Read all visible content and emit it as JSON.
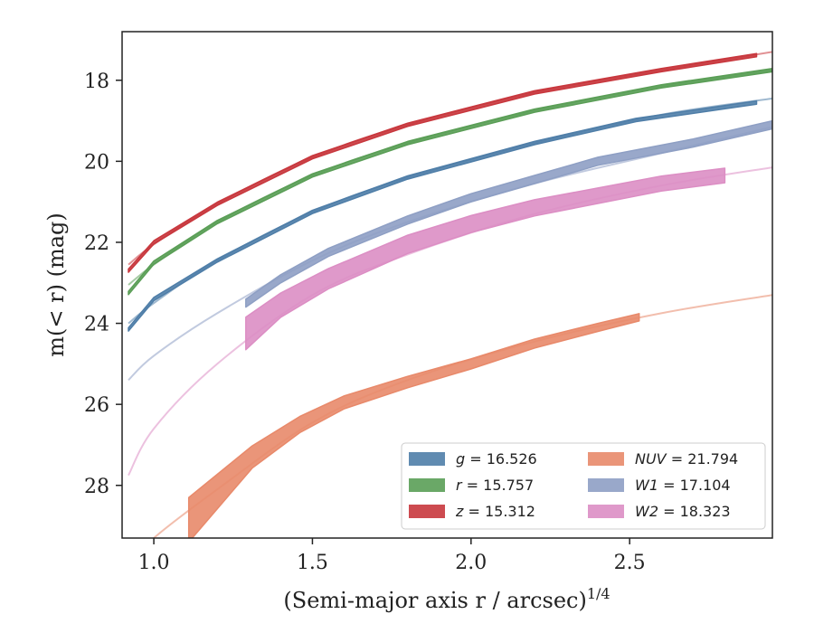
{
  "chart_data": {
    "type": "line",
    "xlabel": "(Semi-major axis r / arcsec)",
    "xlabel_exponent": "1/4",
    "ylabel": "m(< r) (mag)",
    "xlim": [
      0.9,
      2.95
    ],
    "ylim": [
      29.3,
      16.8
    ],
    "y_inverted": true,
    "x_ticks": [
      "1.0",
      "1.5",
      "2.0",
      "2.5"
    ],
    "y_ticks": [
      "18",
      "20",
      "22",
      "24",
      "26",
      "28"
    ],
    "grid": false,
    "legend_position": "lower-right",
    "series": [
      {
        "name": "g = 16.526",
        "color": "#4f7ea8",
        "model_points": [
          [
            0.92,
            24.0
          ],
          [
            1.0,
            23.5
          ],
          [
            1.2,
            22.45
          ],
          [
            1.5,
            21.25
          ],
          [
            1.8,
            20.4
          ],
          [
            2.2,
            19.55
          ],
          [
            2.6,
            18.85
          ],
          [
            2.95,
            18.45
          ]
        ],
        "data_points": [
          [
            0.92,
            24.15
          ],
          [
            1.0,
            23.4
          ],
          [
            1.2,
            22.45
          ],
          [
            1.5,
            21.25
          ],
          [
            1.8,
            20.4
          ],
          [
            2.2,
            19.55
          ],
          [
            2.52,
            18.98
          ],
          [
            2.9,
            18.55
          ]
        ],
        "data_width": 0.08
      },
      {
        "name": "r = 15.757",
        "color": "#5a9e56",
        "model_points": [
          [
            0.92,
            23.05
          ],
          [
            1.0,
            22.55
          ],
          [
            1.2,
            21.5
          ],
          [
            1.5,
            20.35
          ],
          [
            1.8,
            19.55
          ],
          [
            2.2,
            18.75
          ],
          [
            2.6,
            18.15
          ],
          [
            2.95,
            17.75
          ]
        ],
        "data_points": [
          [
            0.92,
            23.25
          ],
          [
            1.0,
            22.5
          ],
          [
            1.2,
            21.5
          ],
          [
            1.5,
            20.35
          ],
          [
            1.8,
            19.55
          ],
          [
            2.2,
            18.75
          ],
          [
            2.6,
            18.15
          ],
          [
            2.95,
            17.75
          ]
        ],
        "data_width": 0.08
      },
      {
        "name": "z = 15.312",
        "color": "#c8373d",
        "model_points": [
          [
            0.92,
            22.55
          ],
          [
            1.0,
            22.05
          ],
          [
            1.2,
            21.05
          ],
          [
            1.5,
            19.9
          ],
          [
            1.8,
            19.1
          ],
          [
            2.2,
            18.3
          ],
          [
            2.6,
            17.75
          ],
          [
            2.95,
            17.3
          ]
        ],
        "data_points": [
          [
            0.92,
            22.7
          ],
          [
            1.0,
            22.0
          ],
          [
            1.2,
            21.05
          ],
          [
            1.5,
            19.9
          ],
          [
            1.8,
            19.1
          ],
          [
            2.2,
            18.3
          ],
          [
            2.6,
            17.75
          ],
          [
            2.9,
            17.38
          ]
        ],
        "data_width": 0.08
      },
      {
        "name": "NUV = 21.794",
        "color": "#e8896a",
        "model_points": [
          [
            0.92,
            30.0
          ],
          [
            1.0,
            29.3
          ],
          [
            1.2,
            28.1
          ],
          [
            1.5,
            26.45
          ],
          [
            1.8,
            25.4
          ],
          [
            2.2,
            24.45
          ],
          [
            2.6,
            23.75
          ],
          [
            2.95,
            23.3
          ]
        ],
        "data_points": [
          [
            1.11,
            28.85
          ],
          [
            1.31,
            27.3
          ],
          [
            1.46,
            26.5
          ],
          [
            1.6,
            25.95
          ],
          [
            1.8,
            25.45
          ],
          [
            2.0,
            25.0
          ],
          [
            2.2,
            24.5
          ],
          [
            2.4,
            24.1
          ],
          [
            2.53,
            23.85
          ]
        ],
        "data_width": [
          1.1,
          0.55,
          0.4,
          0.32,
          0.28,
          0.25,
          0.22,
          0.2,
          0.18
        ]
      },
      {
        "name": "W1 = 17.104",
        "color": "#8e9fc4",
        "model_points": [
          [
            0.92,
            25.4
          ],
          [
            1.0,
            24.8
          ],
          [
            1.2,
            23.75
          ],
          [
            1.5,
            22.45
          ],
          [
            1.8,
            21.5
          ],
          [
            2.2,
            20.55
          ],
          [
            2.6,
            19.8
          ],
          [
            2.95,
            19.15
          ]
        ],
        "data_points": [
          [
            1.29,
            23.5
          ],
          [
            1.4,
            22.9
          ],
          [
            1.55,
            22.25
          ],
          [
            1.8,
            21.45
          ],
          [
            2.0,
            20.9
          ],
          [
            2.2,
            20.45
          ],
          [
            2.4,
            20.0
          ],
          [
            2.7,
            19.55
          ],
          [
            2.95,
            19.1
          ]
        ],
        "data_width": 0.2
      },
      {
        "name": "W2 = 18.323",
        "color": "#dc8ec4",
        "model_points": [
          [
            0.92,
            27.75
          ],
          [
            1.0,
            26.6
          ],
          [
            1.2,
            25.0
          ],
          [
            1.5,
            23.3
          ],
          [
            1.8,
            22.3
          ],
          [
            2.2,
            21.3
          ],
          [
            2.6,
            20.6
          ],
          [
            2.95,
            20.15
          ]
        ],
        "data_points": [
          [
            1.29,
            24.25
          ],
          [
            1.4,
            23.55
          ],
          [
            1.55,
            22.9
          ],
          [
            1.8,
            22.05
          ],
          [
            2.0,
            21.55
          ],
          [
            2.2,
            21.15
          ],
          [
            2.4,
            20.85
          ],
          [
            2.6,
            20.55
          ],
          [
            2.8,
            20.35
          ]
        ],
        "data_width": [
          0.8,
          0.6,
          0.5,
          0.45,
          0.42,
          0.4,
          0.38,
          0.37,
          0.36
        ]
      }
    ]
  },
  "legend": {
    "col1": [
      {
        "var": "g",
        "value": "= 16.526"
      },
      {
        "var": "r",
        "value": "= 15.757"
      },
      {
        "var": "z",
        "value": "= 15.312"
      }
    ],
    "col2": [
      {
        "var": "NUV",
        "value": "= 21.794"
      },
      {
        "var": "W1",
        "value": "= 17.104"
      },
      {
        "var": "W2",
        "value": "= 18.323"
      }
    ]
  }
}
